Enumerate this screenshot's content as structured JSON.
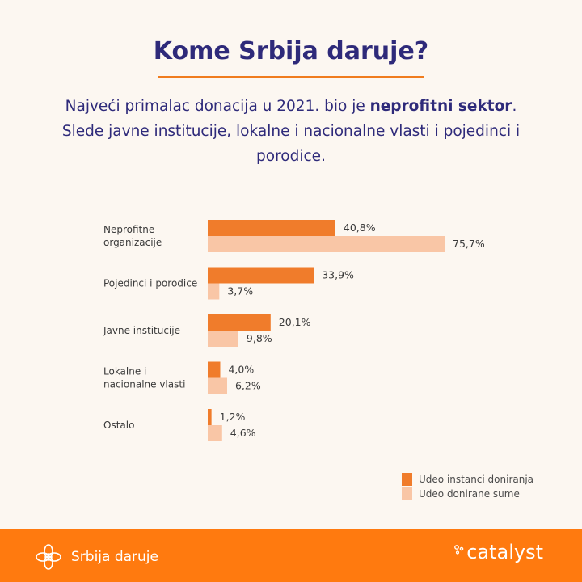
{
  "header": {
    "title": "Kome Srbija daruje?",
    "subtitle_part1": "Najveći primalac donacija u 2021. bio je ",
    "subtitle_bold": "neprofitni sektor",
    "subtitle_part2": ". Slede javne institucije, lokalne i nacionalne vlasti i pojedinci i porodice."
  },
  "chart_data": {
    "type": "bar",
    "orientation": "horizontal",
    "categories": [
      [
        "Neprofitne",
        "organizacije"
      ],
      [
        "Pojedinci i porodice"
      ],
      [
        "Javne institucije"
      ],
      [
        "Lokalne i",
        "nacionalne vlasti"
      ],
      [
        "Ostalo"
      ]
    ],
    "series": [
      {
        "name": "Udeo instanci doniranja",
        "values": [
          40.8,
          33.9,
          20.1,
          4.0,
          1.2
        ],
        "labels": [
          "40,8%",
          "33,9%",
          "20,1%",
          "4,0%",
          "1,2%"
        ],
        "color": "#f07c2b"
      },
      {
        "name": "Udeo donirane sume",
        "values": [
          75.7,
          3.7,
          9.8,
          6.2,
          4.6
        ],
        "labels": [
          "75,7%",
          "3,7%",
          "9,8%",
          "6,2%",
          "4,6%"
        ],
        "color": "#f9c6a6"
      }
    ],
    "xlim": [
      0,
      100
    ],
    "grid": false,
    "legend_position": "bottom-right"
  },
  "footer": {
    "brand_text": "Srbija daruje",
    "partner_text": "catalyst",
    "background": "#ff7a0f"
  },
  "icons": {
    "brand_logo": "flower-knot-icon",
    "partner_logo": "catalyst-dots-icon"
  }
}
